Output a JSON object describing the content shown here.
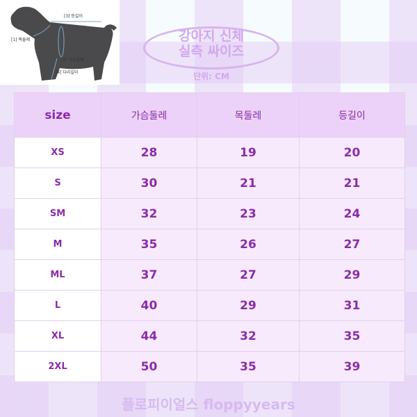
{
  "diagram": {
    "back_length": "[3] 등길이",
    "neck": "[1] 목둘레",
    "chest": "[2] 가슴둘레",
    "leg": "[4] 다리길이"
  },
  "title": {
    "line1": "강아지 신체",
    "line2": "실측 싸이즈",
    "unit": "단위: CM"
  },
  "colors": {
    "accent": "#8a2ca8",
    "header_bg": "#ecd2f8",
    "cell_bg": "#f8eafd"
  },
  "table": {
    "headers": [
      "size",
      "가슴둘레",
      "목둘레",
      "등길이"
    ],
    "rows": [
      [
        "XS",
        "28",
        "19",
        "20"
      ],
      [
        "S",
        "30",
        "21",
        "21"
      ],
      [
        "SM",
        "32",
        "23",
        "24"
      ],
      [
        "M",
        "35",
        "26",
        "27"
      ],
      [
        "ML",
        "37",
        "27",
        "29"
      ],
      [
        "L",
        "40",
        "29",
        "31"
      ],
      [
        "XL",
        "44",
        "32",
        "35"
      ],
      [
        "2XL",
        "50",
        "35",
        "39"
      ]
    ]
  },
  "footer": "플로피이얼스 floppyyears"
}
